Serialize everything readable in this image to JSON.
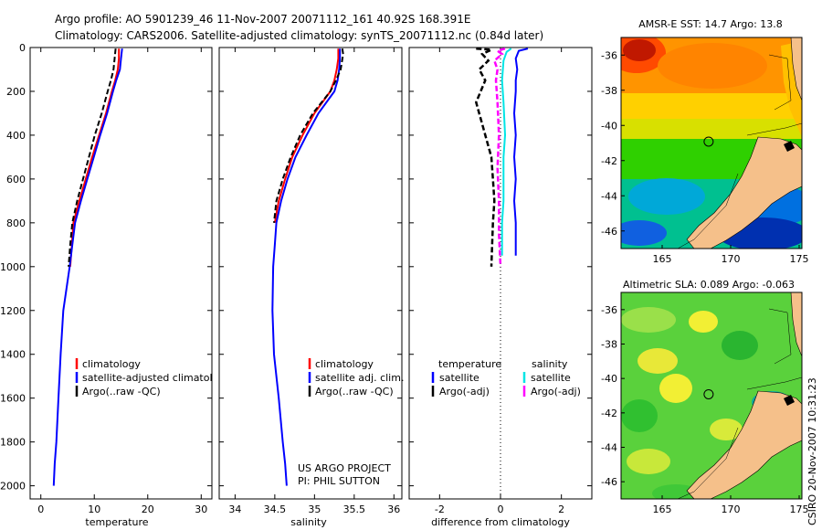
{
  "title": {
    "line1": "Argo profile: AO 5901239_46 11-Nov-2007 20071112_161 40.92S 168.391E",
    "line2": "Climatology: CARS2006. Satellite-adjusted climatology: synTS_20071112.nc (0.84d later)"
  },
  "colors": {
    "climatology": "#ff0000",
    "satellite": "#0000ff",
    "argo": "#000000",
    "salinity_sat": "#00e5e5",
    "salinity_argo": "#ff00ff"
  },
  "chart_data": [
    {
      "type": "line",
      "id": "temperature",
      "xlabel": "temperature",
      "ylabel": "",
      "xlim": [
        -2,
        32
      ],
      "ylim": [
        0,
        2060
      ],
      "y_reversed": true,
      "xticks": [
        0,
        10,
        20,
        30
      ],
      "yticks": [
        0,
        200,
        400,
        600,
        800,
        1000,
        1200,
        1400,
        1600,
        1800,
        2000
      ],
      "legend": [
        "climatology",
        "satellite-adjusted climatology",
        "Argo(..raw -QC)"
      ],
      "series": [
        {
          "name": "climatology",
          "x": [
            14.6,
            14.6,
            14.4,
            13.9,
            13.3,
            12.2,
            10.9,
            9.6,
            8.4,
            7.2,
            6.1,
            5.5
          ],
          "y": [
            5,
            50,
            100,
            150,
            200,
            300,
            400,
            500,
            600,
            700,
            800,
            1000
          ]
        },
        {
          "name": "satellite-adjusted climatology",
          "x": [
            15.2,
            15.0,
            14.8,
            14.1,
            13.5,
            12.4,
            11.1,
            9.9,
            8.7,
            7.5,
            6.4,
            5.9,
            5.4,
            4.8,
            4.2,
            3.7,
            3.3,
            2.9,
            2.6,
            2.4
          ],
          "y": [
            5,
            50,
            100,
            150,
            200,
            300,
            400,
            500,
            600,
            700,
            800,
            900,
            1000,
            1100,
            1200,
            1400,
            1600,
            1800,
            1900,
            2000
          ]
        },
        {
          "name": "Argo(..raw -QC)",
          "x": [
            14.0,
            13.8,
            13.6,
            13.1,
            12.5,
            11.4,
            10.1,
            9.0,
            7.9,
            6.8,
            5.9,
            5.5,
            5.2
          ],
          "y": [
            5,
            50,
            100,
            150,
            200,
            300,
            400,
            500,
            600,
            700,
            800,
            900,
            1000
          ]
        }
      ]
    },
    {
      "type": "line",
      "id": "salinity",
      "xlabel": "salinity",
      "ylabel": "",
      "xlim": [
        33.8,
        36.1
      ],
      "ylim": [
        0,
        2060
      ],
      "y_reversed": true,
      "xticks": [
        34,
        34.5,
        35,
        35.5,
        36
      ],
      "legend": [
        "climatology",
        "satellite adj. clim.",
        "Argo(..raw -QC)"
      ],
      "annotation": [
        "US ARGO PROJECT",
        "PI: PHIL SUTTON"
      ],
      "series": [
        {
          "name": "climatology",
          "x": [
            35.3,
            35.3,
            35.28,
            35.25,
            35.2,
            35.0,
            34.85,
            34.72,
            34.63,
            34.55,
            34.5
          ],
          "y": [
            5,
            50,
            100,
            150,
            200,
            300,
            400,
            500,
            600,
            700,
            800
          ]
        },
        {
          "name": "satellite adj. clim.",
          "x": [
            35.32,
            35.32,
            35.31,
            35.29,
            35.25,
            35.05,
            34.9,
            34.76,
            34.66,
            34.58,
            34.52,
            34.5,
            34.48,
            34.47,
            34.49,
            34.55,
            34.6,
            34.63,
            34.65
          ],
          "y": [
            5,
            50,
            100,
            150,
            200,
            300,
            400,
            500,
            600,
            700,
            800,
            900,
            1000,
            1200,
            1400,
            1600,
            1800,
            1900,
            2000
          ]
        },
        {
          "name": "Argo(..raw -QC)",
          "x": [
            35.35,
            35.36,
            35.33,
            35.27,
            35.2,
            34.98,
            34.82,
            34.7,
            34.6,
            34.52,
            34.49
          ],
          "y": [
            5,
            30,
            100,
            150,
            200,
            300,
            400,
            500,
            600,
            700,
            800
          ]
        }
      ]
    },
    {
      "type": "line",
      "id": "difference",
      "xlabel": "difference from climatology",
      "ylabel": "",
      "xlim": [
        -3,
        3
      ],
      "ylim": [
        0,
        2060
      ],
      "y_reversed": true,
      "xticks": [
        -2,
        0,
        2
      ],
      "legend": [
        "temperature",
        "salinity",
        "satellite",
        "satellite",
        "Argo(-adj)",
        "Argo(-adj)"
      ],
      "series": [
        {
          "name": "temperature satellite",
          "x": [
            0.9,
            0.6,
            0.5,
            0.55,
            0.5,
            0.5,
            0.45,
            0.5,
            0.45,
            0.5,
            0.45,
            0.5,
            0.5
          ],
          "y": [
            5,
            15,
            50,
            100,
            150,
            200,
            300,
            400,
            500,
            600,
            700,
            800,
            950
          ]
        },
        {
          "name": "temperature Argo(-adj)",
          "x": [
            -0.8,
            -0.3,
            -0.6,
            -0.4,
            -0.7,
            -0.5,
            -0.8,
            -0.6,
            -0.3,
            -0.25,
            -0.2,
            -0.25,
            -0.3
          ],
          "y": [
            5,
            10,
            30,
            60,
            100,
            150,
            250,
            350,
            500,
            600,
            700,
            800,
            1000
          ]
        },
        {
          "name": "salinity satellite",
          "x": [
            0.35,
            0.2,
            0.15,
            0.1,
            0.05,
            0.1,
            0.15,
            0.1,
            0.1,
            0.1,
            0.05,
            0.05
          ],
          "y": [
            5,
            20,
            40,
            60,
            150,
            250,
            400,
            500,
            600,
            700,
            800,
            950
          ]
        },
        {
          "name": "salinity Argo(-adj)",
          "x": [
            0.15,
            -0.1,
            0.05,
            -0.2,
            -0.1,
            -0.15,
            -0.1,
            -0.05,
            -0.1,
            -0.05,
            -0.05,
            0.0
          ],
          "y": [
            5,
            15,
            30,
            60,
            100,
            150,
            250,
            400,
            550,
            700,
            850,
            1000
          ]
        }
      ]
    },
    {
      "type": "heatmap",
      "id": "sst-map",
      "title": "AMSR-E SST: 14.7 Argo: 13.8",
      "xlim": [
        162,
        175.2
      ],
      "ylim": [
        -47,
        -35
      ],
      "xticks": [
        165,
        170,
        175
      ],
      "yticks": [
        -36,
        -38,
        -40,
        -42,
        -44,
        -46
      ],
      "argo_position": {
        "lon": 168.391,
        "lat": -40.92
      }
    },
    {
      "type": "heatmap",
      "id": "sla-map",
      "title": "Altimetric SLA: 0.089 Argo: -0.063",
      "xlim": [
        162,
        175.2
      ],
      "ylim": [
        -47,
        -35
      ],
      "xticks": [
        165,
        170,
        175
      ],
      "yticks": [
        -36,
        -38,
        -40,
        -42,
        -44,
        -46
      ],
      "argo_position": {
        "lon": 168.391,
        "lat": -40.92
      }
    }
  ],
  "stamp": "CSIRO 20-Nov-2007 10:31:23"
}
